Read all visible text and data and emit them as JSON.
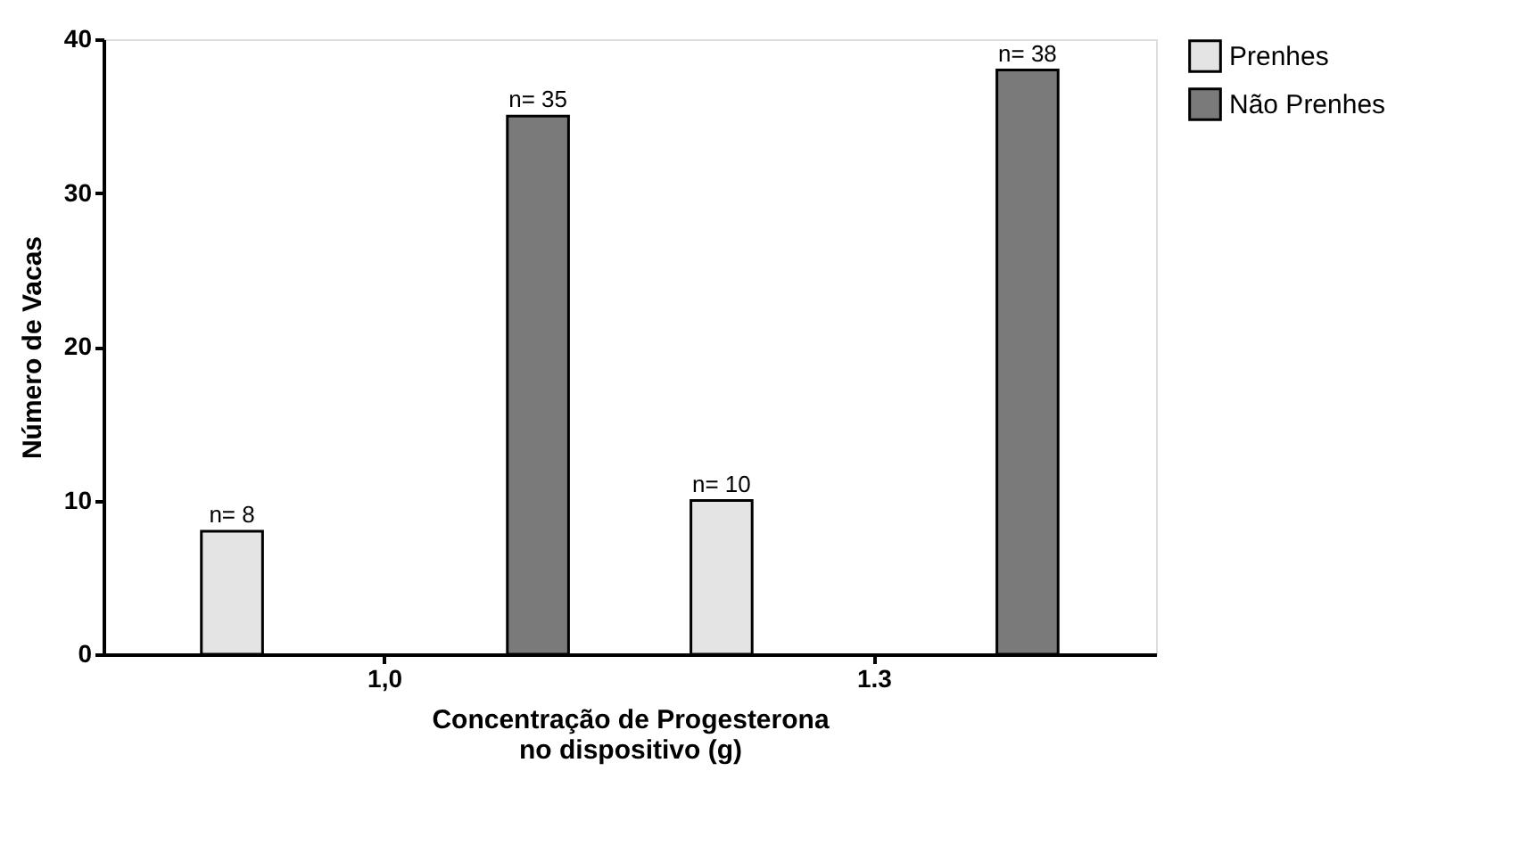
{
  "chart_data": {
    "type": "bar",
    "xlabel": "Concentração de Progesterona\nno dispositivo (g)",
    "ylabel": "Número de Vacas",
    "categories": [
      "1,0",
      "1.3"
    ],
    "series": [
      {
        "name": "Prenhes",
        "color": "#e4e4e4",
        "values": [
          8,
          10
        ],
        "value_labels": [
          "n= 8",
          "n= 10"
        ]
      },
      {
        "name": "Não Prenhes",
        "color": "#7a7a7a",
        "values": [
          35,
          38
        ],
        "value_labels": [
          "n= 35",
          "n= 38"
        ]
      }
    ],
    "ylim": [
      0,
      40
    ],
    "yticks": [
      0,
      10,
      20,
      30,
      40
    ],
    "grid": false,
    "legend": "top right"
  }
}
